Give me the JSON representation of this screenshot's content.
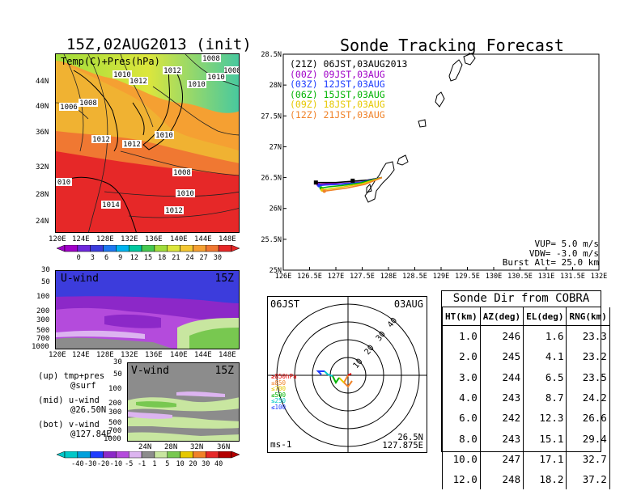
{
  "main_title": "15Z,02AUG2013 (init)",
  "track_title": "Sonde Tracking Forecast",
  "surface_map": {
    "label": "Temp(C)+Pres(hPa)",
    "lat_ticks": [
      "44N",
      "40N",
      "36N",
      "32N",
      "28N",
      "24N"
    ],
    "lon_ticks": [
      "120E",
      "124E",
      "128E",
      "132E",
      "136E",
      "140E",
      "144E",
      "148E"
    ],
    "isobars": [
      "1010",
      "1012",
      "1012",
      "1008",
      "1010",
      "1010",
      "1008",
      "1006",
      "1008",
      "1012",
      "1010",
      "1012",
      "1008",
      "010",
      "1010",
      "1014",
      "1012"
    ],
    "colorbar_ticks": [
      "0",
      "3",
      "6",
      "9",
      "12",
      "15",
      "18",
      "21",
      "24",
      "27",
      "30"
    ]
  },
  "u_wind": {
    "label": "U-wind",
    "time": "15Z",
    "p_ticks": [
      "30",
      "50",
      "100",
      "200",
      "300",
      "500",
      "700",
      "1000"
    ],
    "lon_ticks": [
      "120E",
      "124E",
      "128E",
      "132E",
      "136E",
      "140E",
      "144E",
      "148E"
    ]
  },
  "v_wind": {
    "label": "V-wind",
    "time": "15Z",
    "p_ticks": [
      "30",
      "50",
      "100",
      "200",
      "300",
      "500",
      "700",
      "1000"
    ],
    "lat_ticks": [
      "24N",
      "28N",
      "32N",
      "36N"
    ],
    "colorbar_ticks": [
      "-40",
      "-30",
      "-20",
      "-10",
      "-5",
      "-1",
      "1",
      "5",
      "10",
      "20",
      "30",
      "40"
    ]
  },
  "panel_notes": [
    {
      "line1": "(up) tmp+pres",
      "line2": "@surf"
    },
    {
      "line1": "(mid) u-wind",
      "line2": "@26.50N"
    },
    {
      "line1": "(bot) v-wind",
      "line2": "@127.84E"
    }
  ],
  "track_legend": [
    {
      "text": "(21Z) 06JST,03AUG2013",
      "color": "#000000"
    },
    {
      "text": "(00Z) 09JST,03AUG",
      "color": "#a000c8"
    },
    {
      "text": "(03Z) 12JST,03AUG",
      "color": "#1e3cff"
    },
    {
      "text": "(06Z) 15JST,03AUG",
      "color": "#00b400"
    },
    {
      "text": "(09Z) 18JST,03AUG",
      "color": "#e6c800"
    },
    {
      "text": "(12Z) 21JST,03AUG",
      "color": "#f08228"
    }
  ],
  "track_params": {
    "vup": "VUP= 5.0 m/s",
    "vdw": "VDW= -3.0 m/s",
    "burst": "Burst Alt= 25.0 km"
  },
  "polar": {
    "time_label": "06JST",
    "date_label": "03AUG",
    "unit_label": "ms-1",
    "location_lat": "26.5N",
    "location_lon": "127.875E",
    "ring_labels": [
      "10",
      "20",
      "30",
      "40"
    ],
    "pressure_legend": [
      {
        "text": "≥850hPa",
        "color": "#e60000"
      },
      {
        "text": "≤850",
        "color": "#f08228"
      },
      {
        "text": "≤700",
        "color": "#e6c800"
      },
      {
        "text": "≤500",
        "color": "#00b400"
      },
      {
        "text": "≤250",
        "color": "#00c8c8"
      },
      {
        "text": "≤100",
        "color": "#1e3cff"
      }
    ]
  },
  "table": {
    "title": "Sonde Dir from COBRA",
    "headers": [
      "HT(km)",
      "AZ(deg)",
      "EL(deg)",
      "RNG(km)"
    ],
    "rows": [
      [
        "1.0",
        "246",
        "1.6",
        "23.3"
      ],
      [
        "2.0",
        "245",
        "4.1",
        "23.2"
      ],
      [
        "3.0",
        "244",
        "6.5",
        "23.5"
      ],
      [
        "4.0",
        "243",
        "8.7",
        "24.2"
      ],
      [
        "6.0",
        "242",
        "12.3",
        "26.6"
      ],
      [
        "8.0",
        "243",
        "15.1",
        "29.4"
      ],
      [
        "10.0",
        "247",
        "17.1",
        "32.7"
      ],
      [
        "12.0",
        "248",
        "18.2",
        "37.2"
      ]
    ]
  },
  "chart_data": {
    "type": "line",
    "title": "Sonde Tracking Forecast",
    "xlabel": "",
    "ylabel": "",
    "x_ticks": [
      "126E",
      "126.5E",
      "127E",
      "127.5E",
      "128E",
      "128.5E",
      "129E",
      "129.5E",
      "130E",
      "130.5E",
      "131E",
      "131.5E",
      "132E"
    ],
    "y_ticks": [
      "25N",
      "25.5N",
      "26N",
      "26.5N",
      "27N",
      "27.5N",
      "28N",
      "28.5N"
    ],
    "xlim": [
      126,
      132
    ],
    "ylim": [
      25,
      28.5
    ],
    "series": [
      {
        "name": "(21Z) 06JST,03AUG2013",
        "color": "#000000",
        "x": [
          127.875,
          127.6,
          127.3,
          127.0,
          126.8,
          126.62
        ],
        "y": [
          26.5,
          26.46,
          26.44,
          26.42,
          26.42,
          26.42
        ]
      },
      {
        "name": "(00Z) 09JST,03AUG",
        "color": "#a000c8",
        "x": [
          127.875,
          127.5,
          127.1,
          126.85,
          126.66
        ],
        "y": [
          26.5,
          26.43,
          26.4,
          26.4,
          26.39
        ]
      },
      {
        "name": "(03Z) 12JST,03AUG",
        "color": "#1e3cff",
        "x": [
          127.875,
          127.45,
          127.05,
          126.8,
          126.68
        ],
        "y": [
          26.5,
          26.42,
          26.39,
          26.38,
          26.37
        ]
      },
      {
        "name": "(06Z) 15JST,03AUG",
        "color": "#00b400",
        "x": [
          127.875,
          127.45,
          127.1,
          126.86,
          126.72
        ],
        "y": [
          26.5,
          26.41,
          26.37,
          26.35,
          26.33
        ]
      },
      {
        "name": "(09Z) 18JST,03AUG",
        "color": "#e6c800",
        "x": [
          127.875,
          127.5,
          127.15,
          126.9,
          126.74
        ],
        "y": [
          26.5,
          26.4,
          26.35,
          26.32,
          26.3
        ]
      },
      {
        "name": "(12Z) 21JST,03AUG",
        "color": "#f08228",
        "x": [
          127.875,
          127.55,
          127.2,
          126.95,
          126.78
        ],
        "y": [
          26.5,
          26.39,
          26.33,
          26.3,
          26.28
        ]
      }
    ],
    "markers": [
      {
        "x": 126.62,
        "y": 26.42
      },
      {
        "x": 127.32,
        "y": 26.45
      }
    ]
  }
}
